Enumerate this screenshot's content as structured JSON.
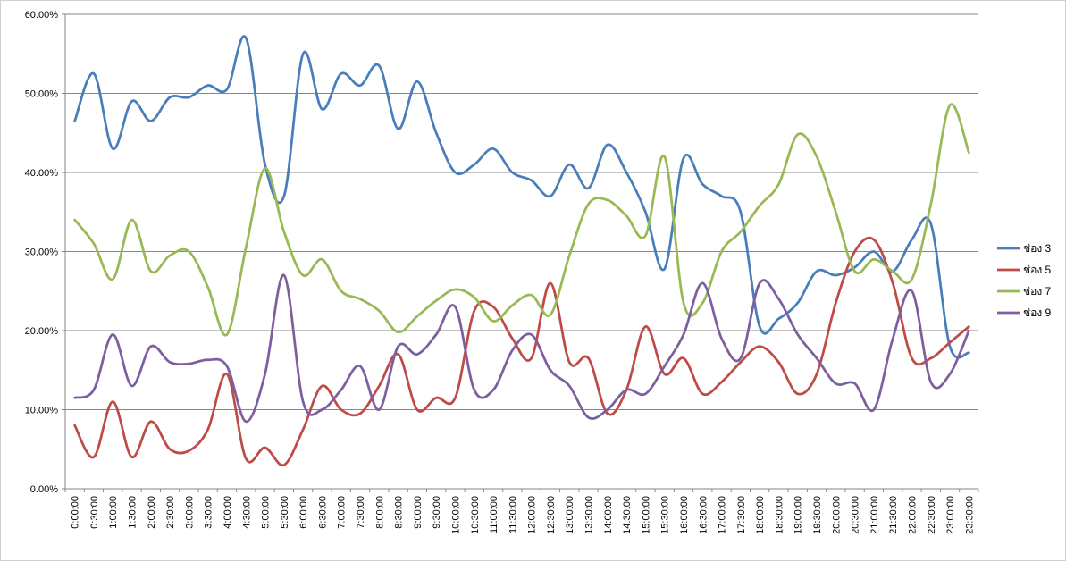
{
  "chart_data": {
    "type": "line",
    "title": "",
    "xlabel": "",
    "ylabel": "",
    "ylim": [
      0,
      60
    ],
    "y_tick_labels": [
      "0.00%",
      "10.00%",
      "20.00%",
      "30.00%",
      "40.00%",
      "50.00%",
      "60.00%"
    ],
    "grid": "horizontal",
    "legend_position": "right",
    "x": [
      "0:00:00",
      "0:30:00",
      "1:00:00",
      "1:30:00",
      "2:00:00",
      "2:30:00",
      "3:00:00",
      "3:30:00",
      "4:00:00",
      "4:30:00",
      "5:00:00",
      "5:30:00",
      "6:00:00",
      "6:30:00",
      "7:00:00",
      "7:30:00",
      "8:00:00",
      "8:30:00",
      "9:00:00",
      "9:30:00",
      "10:00:00",
      "10:30:00",
      "11:00:00",
      "11:30:00",
      "12:00:00",
      "12:30:00",
      "13:00:00",
      "13:30:00",
      "14:00:00",
      "14:30:00",
      "15:00:00",
      "15:30:00",
      "16:00:00",
      "16:30:00",
      "17:00:00",
      "17:30:00",
      "18:00:00",
      "18:30:00",
      "19:00:00",
      "19:30:00",
      "20:00:00",
      "20:30:00",
      "21:00:00",
      "21:30:00",
      "22:00:00",
      "22:30:00",
      "23:00:00",
      "23:30:00"
    ],
    "series": [
      {
        "name": "ช่อง 3",
        "color": "#4a7ebb",
        "values": [
          46.5,
          52.5,
          43.0,
          49.0,
          46.5,
          49.5,
          49.5,
          51.0,
          50.5,
          57.0,
          41.0,
          37.0,
          55.0,
          48.0,
          52.5,
          51.0,
          53.5,
          45.5,
          51.5,
          45.0,
          40.0,
          41.0,
          43.0,
          40.0,
          39.0,
          37.0,
          41.0,
          38.0,
          43.5,
          40.0,
          35.0,
          27.8,
          41.8,
          38.5,
          37.0,
          35.0,
          20.5,
          21.5,
          23.5,
          27.5,
          27.0,
          28.0,
          30.0,
          27.5,
          31.5,
          33.5,
          18.0,
          17.2
        ]
      },
      {
        "name": "ช่อง 5",
        "color": "#be4b48",
        "values": [
          8.0,
          4.0,
          11.0,
          4.0,
          8.5,
          5.0,
          4.8,
          7.5,
          14.5,
          3.8,
          5.2,
          3.0,
          7.5,
          13.0,
          10.0,
          9.5,
          13.0,
          17.0,
          10.0,
          11.5,
          11.5,
          22.5,
          23.0,
          19.0,
          16.5,
          26.0,
          16.0,
          16.5,
          9.5,
          12.5,
          20.5,
          14.5,
          16.5,
          12.0,
          13.5,
          16.0,
          18.0,
          16.0,
          12.0,
          14.5,
          23.5,
          30.0,
          31.5,
          26.0,
          16.5,
          16.5,
          18.5,
          20.5
        ]
      },
      {
        "name": "ช่อง 7",
        "color": "#98b954",
        "values": [
          34.0,
          31.0,
          26.5,
          34.0,
          27.5,
          29.5,
          30.0,
          25.5,
          19.5,
          30.5,
          40.5,
          32.5,
          27.0,
          29.0,
          25.0,
          24.0,
          22.5,
          19.8,
          21.8,
          23.8,
          25.2,
          24.2,
          21.2,
          23.2,
          24.5,
          22.0,
          29.5,
          36.0,
          36.5,
          34.5,
          32.0,
          42.0,
          23.5,
          23.5,
          30.0,
          32.5,
          35.8,
          38.5,
          44.8,
          42.0,
          35.0,
          27.5,
          29.0,
          27.5,
          26.5,
          36.0,
          48.5,
          42.5
        ]
      },
      {
        "name": "ช่อง 9",
        "color": "#7d5fa0",
        "values": [
          11.5,
          12.5,
          19.5,
          13.0,
          18.0,
          16.0,
          15.8,
          16.3,
          15.5,
          8.5,
          14.5,
          27.0,
          11.0,
          10.0,
          12.5,
          15.5,
          10.0,
          18.0,
          17.0,
          19.5,
          23.0,
          12.5,
          12.5,
          17.5,
          19.5,
          15.0,
          13.0,
          9.0,
          10.0,
          12.5,
          12.0,
          15.5,
          19.5,
          26.0,
          19.0,
          16.5,
          26.0,
          24.0,
          19.5,
          16.5,
          13.3,
          13.3,
          10.0,
          19.0,
          25.0,
          13.5,
          14.5,
          20.0
        ]
      }
    ]
  }
}
